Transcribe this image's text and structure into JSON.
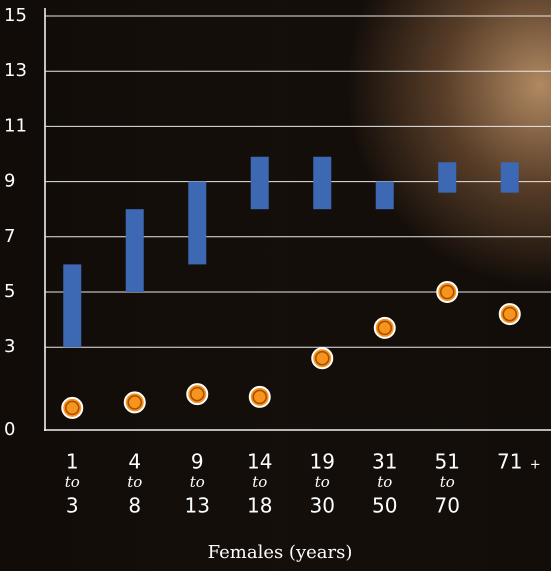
{
  "chart_data": {
    "type": "combo",
    "x_label": "Females (years)",
    "categories": [
      [
        "1",
        "to",
        "3"
      ],
      [
        "4",
        "to",
        "8"
      ],
      [
        "9",
        "to",
        "13"
      ],
      [
        "14",
        "to",
        "18"
      ],
      [
        "19",
        "to",
        "30"
      ],
      [
        "31",
        "to",
        "50"
      ],
      [
        "51",
        "to",
        "70"
      ],
      [
        "71",
        "+"
      ]
    ],
    "ylim": [
      0,
      15
    ],
    "yticks": [
      0,
      3,
      5,
      7,
      9,
      11,
      13,
      15
    ],
    "grid": true,
    "series": [
      {
        "type": "range",
        "color": "#3d69b4",
        "low": [
          3,
          5,
          6,
          8,
          8,
          8,
          8.6,
          8.6
        ],
        "high": [
          6,
          8,
          9,
          9.9,
          9.9,
          9,
          9.7,
          9.7
        ]
      },
      {
        "type": "scatter",
        "color": "#f7941d",
        "values": [
          0.8,
          1.0,
          1.3,
          1.2,
          2.6,
          3.7,
          5.0,
          4.2
        ]
      }
    ]
  }
}
